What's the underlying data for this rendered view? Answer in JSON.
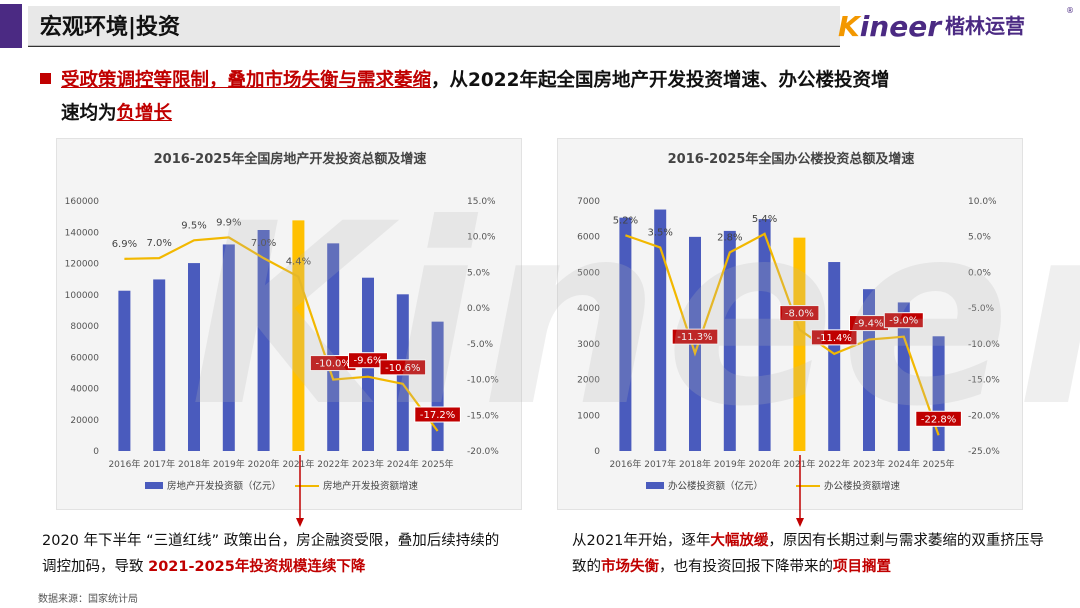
{
  "header": {
    "title": "宏观环境|投资"
  },
  "brand": {
    "name_en": "Kineer",
    "name_cn": "楷林运营",
    "reg": "®"
  },
  "headline": {
    "part1_red": "受政策调控等限制，叠加市场失衡与需求萎缩",
    "part2": "，从2022年起全国房地产开发投资增速、办公楼投资增",
    "part3": "速均为",
    "part4_red": "负增长"
  },
  "watermark": "Kineer",
  "colors": {
    "bar": "#4a5bbd",
    "highlight_bar": "#ffc000",
    "line": "#f2b800",
    "label_bg": "#c00000",
    "arrow": "#c00000"
  },
  "chart_data": [
    {
      "type": "bar",
      "title": "2016-2025年全国房地产开发投资总额及增速",
      "categories": [
        "2016年",
        "2017年",
        "2018年",
        "2019年",
        "2020年",
        "2021年",
        "2022年",
        "2023年",
        "2024年",
        "2025年"
      ],
      "series": [
        {
          "name": "房地产开发投资额（亿元）",
          "type": "bar",
          "axis": "left",
          "values": [
            102581,
            109799,
            120264,
            132194,
            141443,
            147602,
            132895,
            110913,
            100280,
            82788
          ]
        },
        {
          "name": "房地产开发投资额增速",
          "type": "line",
          "axis": "right",
          "values": [
            6.9,
            7.0,
            9.5,
            9.9,
            7.0,
            4.4,
            -10.0,
            -9.6,
            -10.6,
            -17.2
          ],
          "labels": [
            "6.9%",
            "7.0%",
            "9.5%",
            "9.9%",
            "7.0%",
            "4.4%",
            "-10.0%",
            "-9.6%",
            "-10.6%",
            "-17.2%"
          ]
        }
      ],
      "highlight_index": 5,
      "yleft": {
        "min": 0,
        "max": 160000,
        "step": 20000,
        "ticks": [
          "0",
          "20000",
          "40000",
          "60000",
          "80000",
          "100000",
          "120000",
          "140000",
          "160000"
        ]
      },
      "yright": {
        "min": -20,
        "max": 15,
        "step": 5,
        "ticks": [
          "-20.0%",
          "-15.0%",
          "-10.0%",
          "-5.0%",
          "0.0%",
          "5.0%",
          "10.0%",
          "15.0%"
        ]
      },
      "legend": [
        "房地产开发投资额（亿元）",
        "房地产开发投资额增速"
      ]
    },
    {
      "type": "bar",
      "title": "2016-2025年全国办公楼投资总额及增速",
      "categories": [
        "2016年",
        "2017年",
        "2018年",
        "2019年",
        "2020年",
        "2021年",
        "2022年",
        "2023年",
        "2024年",
        "2025年"
      ],
      "series": [
        {
          "name": "办公楼投资额（亿元）",
          "type": "bar",
          "axis": "left",
          "values": [
            6533,
            6761,
            5996,
            6163,
            6494,
            5974,
            5291,
            4531,
            4160,
            3212
          ]
        },
        {
          "name": "办公楼投资额增速",
          "type": "line",
          "axis": "right",
          "values": [
            5.2,
            3.5,
            -11.3,
            2.8,
            5.4,
            -8.0,
            -11.4,
            -9.4,
            -9.0,
            -22.8
          ],
          "labels": [
            "5.2%",
            "3.5%",
            "-11.3%",
            "2.8%",
            "5.4%",
            "-8.0%",
            "-11.4%",
            "-9.4%",
            "-9.0%",
            "-22.8%"
          ]
        }
      ],
      "highlight_index": 5,
      "yleft": {
        "min": 0,
        "max": 7000,
        "step": 1000,
        "ticks": [
          "0",
          "1000",
          "2000",
          "3000",
          "4000",
          "5000",
          "6000",
          "7000"
        ]
      },
      "yright": {
        "min": -25,
        "max": 10,
        "step": 5,
        "ticks": [
          "-25.0%",
          "-20.0%",
          "-15.0%",
          "-10.0%",
          "-5.0%",
          "0.0%",
          "5.0%",
          "10.0%"
        ]
      },
      "legend": [
        "办公楼投资额（亿元）",
        "办公楼投资额增速"
      ]
    }
  ],
  "notes": {
    "left": {
      "text1": "2020 年下半年 “三道红线” 政策出台，房企融资受限，叠加后续持续的调控加码，导致 ",
      "red": "2021-2025年投资规模连续下降"
    },
    "right": {
      "text1": "从2021年开始，逐年",
      "red1": "大幅放缓",
      "text2": "，原因有长期过剩与需求萎缩的双重挤压导致的",
      "red2": "市场失衡",
      "text3": "，也有投资回报下降带来的",
      "red3": "项目搁置"
    }
  },
  "source": "数据来源：国家统计局"
}
